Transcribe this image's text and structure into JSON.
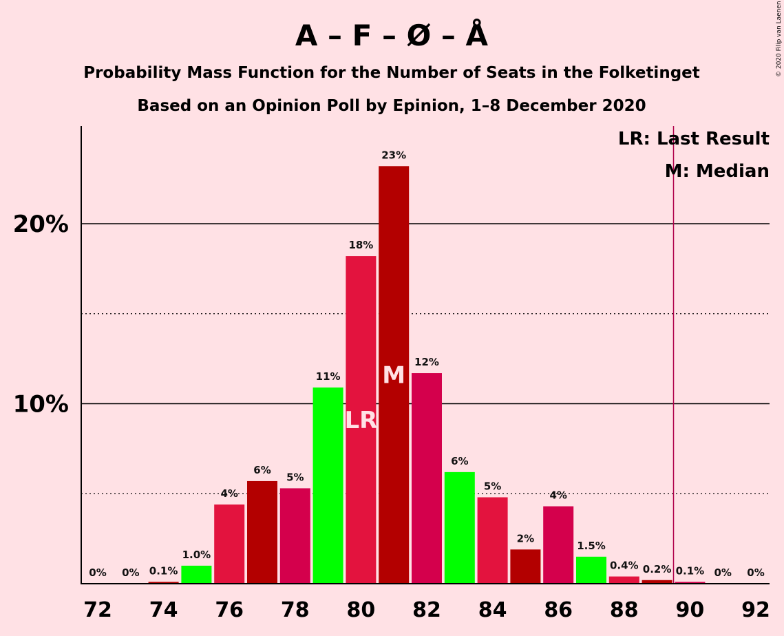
{
  "header": {
    "title": "A – F – Ø – Å",
    "subtitle_1": "Probability Mass Function for the Number of Seats in the Folketinget",
    "subtitle_2": "Based on an Opinion Poll by Epinion, 1–8 December 2020"
  },
  "copyright": "© 2020 Filip van Laenen",
  "legend": {
    "last_result": "LR: Last Result",
    "median": "M: Median",
    "position": "top-right"
  },
  "colors": {
    "background": "#FFE1E5",
    "green": "#00FF00",
    "red": "#E3133E",
    "dark_red": "#B30000",
    "crimson": "#D4004C",
    "last_result_line": "#B0004A"
  },
  "chart_data": {
    "type": "bar",
    "x": [
      72,
      73,
      74,
      75,
      76,
      77,
      78,
      79,
      80,
      81,
      82,
      83,
      84,
      85,
      86,
      87,
      88,
      89,
      90,
      91,
      92
    ],
    "values": [
      0,
      0,
      0.1,
      1.0,
      4.4,
      5.7,
      5.3,
      10.9,
      18.2,
      23.2,
      11.7,
      6.2,
      4.8,
      1.9,
      4.3,
      1.5,
      0.4,
      0.2,
      0.1,
      0,
      0
    ],
    "labels": [
      "0%",
      "0%",
      "0.1%",
      "1.0%",
      "4%",
      "6%",
      "5%",
      "11%",
      "18%",
      "23%",
      "12%",
      "6%",
      "5%",
      "2%",
      "4%",
      "1.5%",
      "0.4%",
      "0.2%",
      "0.1%",
      "0%",
      "0%"
    ],
    "bar_colors": [
      "#00FF00",
      "#E3133E",
      "#B30000",
      "#00FF00",
      "#E3133E",
      "#B30000",
      "#D4004C",
      "#00FF00",
      "#E3133E",
      "#B30000",
      "#D4004C",
      "#00FF00",
      "#E3133E",
      "#B30000",
      "#D4004C",
      "#00FF00",
      "#E3133E",
      "#B30000",
      "#D4004C",
      "#00FF00",
      "#E3133E"
    ],
    "x_ticks": [
      "72",
      "74",
      "76",
      "78",
      "80",
      "82",
      "84",
      "86",
      "88",
      "90",
      "92"
    ],
    "y_ticks": [
      "10%",
      "20%"
    ],
    "y_tick_values": [
      10,
      20
    ],
    "ylim": [
      0,
      25
    ],
    "solid_gridlines": [
      10,
      20
    ],
    "dotted_gridlines": [
      5,
      15
    ],
    "last_result_seat": 80,
    "median_seat": 81,
    "last_result_marker": "LR",
    "median_marker": "M",
    "majority_line_seat": 89.5
  }
}
